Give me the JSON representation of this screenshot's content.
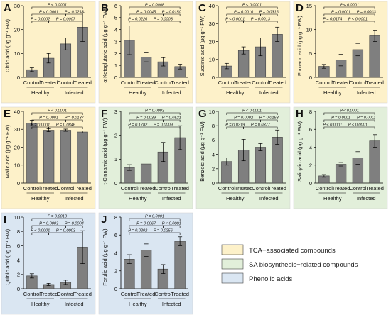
{
  "x_categories": [
    "Control",
    "Treated",
    "Control",
    "Treated"
  ],
  "group_labels": [
    "Healthy",
    "Infected"
  ],
  "legend": [
    {
      "label": "TCA−associated compounds",
      "color": "#fdf1c9"
    },
    {
      "label": "SA biosynthesis−related compounds",
      "color": "#e2efda"
    },
    {
      "label": "Phenolic acids",
      "color": "#dae6f2"
    }
  ],
  "colors": {
    "bar": "#7f7f7f",
    "tca_bg": "#fdf1c9",
    "sa_bg": "#e2efda",
    "phenolic_bg": "#dae6f2"
  },
  "chart_data": [
    {
      "panel": "A",
      "type": "bar",
      "ylabel": "Citric acid (μg g⁻¹ FW)",
      "ylim": [
        0,
        30
      ],
      "yticks": [
        0,
        10,
        20,
        30
      ],
      "categories": [
        "Control",
        "Treated",
        "Control",
        "Treated"
      ],
      "values": [
        3.2,
        8.0,
        14.0,
        21.0
      ],
      "errors": [
        0.8,
        2.0,
        2.5,
        6.0
      ],
      "background": "tca",
      "comparisons": [
        {
          "from": 0,
          "to": 3,
          "label": "P < 0.0001"
        },
        {
          "from": 0,
          "to": 2,
          "label": "P < 0.0001"
        },
        {
          "from": 2,
          "to": 3,
          "label": "P = 0.0218"
        },
        {
          "from": 0,
          "to": 1,
          "label": "P = 0.0002"
        },
        {
          "from": 1,
          "to": 3,
          "label": "P = 0.0007"
        }
      ]
    },
    {
      "panel": "B",
      "type": "bar",
      "ylabel": "α-Ketoglutaric acid (μg g⁻¹ FW)",
      "ylim": [
        0,
        6
      ],
      "yticks": [
        0,
        1,
        2,
        3,
        4,
        5,
        6
      ],
      "categories": [
        "Control",
        "Treated",
        "Control",
        "Treated"
      ],
      "values": [
        3.1,
        1.7,
        1.3,
        0.9
      ],
      "errors": [
        1.2,
        0.4,
        0.35,
        0.2
      ],
      "background": "tca",
      "comparisons": [
        {
          "from": 0,
          "to": 3,
          "label": "P = 0.0008"
        },
        {
          "from": 0,
          "to": 2,
          "label": "P = 0.0045"
        },
        {
          "from": 2,
          "to": 3,
          "label": "P = 0.0150"
        },
        {
          "from": 0,
          "to": 1,
          "label": "P = 0.0226"
        },
        {
          "from": 1,
          "to": 3,
          "label": "P = 0.0003"
        }
      ]
    },
    {
      "panel": "C",
      "type": "bar",
      "ylabel": "Succinic acid (μg g⁻¹ FW)",
      "ylim": [
        0,
        40
      ],
      "yticks": [
        0,
        10,
        20,
        30,
        40
      ],
      "categories": [
        "Control",
        "Treated",
        "Control",
        "Treated"
      ],
      "values": [
        6.3,
        15.0,
        17.0,
        24.0
      ],
      "errors": [
        1.5,
        2.0,
        5.0,
        4.0
      ],
      "background": "tca",
      "comparisons": [
        {
          "from": 0,
          "to": 3,
          "label": "P < 0.0001"
        },
        {
          "from": 0,
          "to": 2,
          "label": "P = 0.0010"
        },
        {
          "from": 2,
          "to": 3,
          "label": "P = 0.0316"
        },
        {
          "from": 0,
          "to": 1,
          "label": "P < 0.0001"
        },
        {
          "from": 1,
          "to": 3,
          "label": "P = 0.0013"
        }
      ]
    },
    {
      "panel": "D",
      "type": "bar",
      "ylabel": "Fumaric acid (μg g⁻¹ FW)",
      "ylim": [
        0,
        15
      ],
      "yticks": [
        0,
        5,
        10,
        15
      ],
      "categories": [
        "Control",
        "Treated",
        "Control",
        "Treated"
      ],
      "values": [
        2.3,
        3.6,
        5.8,
        8.7
      ],
      "errors": [
        0.4,
        1.2,
        1.3,
        1.2
      ],
      "background": "tca",
      "comparisons": [
        {
          "from": 0,
          "to": 3,
          "label": "P < 0.0001"
        },
        {
          "from": 0,
          "to": 2,
          "label": "P = 0.0001"
        },
        {
          "from": 2,
          "to": 3,
          "label": "P = 0.0033"
        },
        {
          "from": 0,
          "to": 1,
          "label": "P = 0.0174"
        },
        {
          "from": 1,
          "to": 3,
          "label": "P < 0.0001"
        }
      ]
    },
    {
      "panel": "E",
      "type": "bar",
      "ylabel": "Malic acid (μg g⁻¹ FW)",
      "ylim": [
        0,
        40
      ],
      "yticks": [
        0,
        10,
        20,
        30,
        40
      ],
      "categories": [
        "Control",
        "Treated",
        "Control",
        "Treated"
      ],
      "values": [
        33.5,
        29.5,
        29.5,
        28.5
      ],
      "errors": [
        1.5,
        0.8,
        0.6,
        0.6
      ],
      "background": "tca",
      "comparisons": [
        {
          "from": 0,
          "to": 3,
          "label": "P < 0.0001"
        },
        {
          "from": 0,
          "to": 2,
          "label": "P = 0.0001"
        },
        {
          "from": 2,
          "to": 3,
          "label": "P = 0.0137"
        },
        {
          "from": 0,
          "to": 1,
          "label": "P = 0.0001"
        },
        {
          "from": 1,
          "to": 3,
          "label": "P = 0.0846"
        }
      ]
    },
    {
      "panel": "F",
      "type": "bar",
      "ylabel": "t-Cinnamic acid (μg g⁻¹ FW)",
      "ylim": [
        0,
        3
      ],
      "yticks": [
        0,
        1,
        2,
        3
      ],
      "categories": [
        "Control",
        "Treated",
        "Control",
        "Treated"
      ],
      "values": [
        0.65,
        0.8,
        1.3,
        1.9
      ],
      "errors": [
        0.12,
        0.25,
        0.4,
        0.5
      ],
      "background": "sa",
      "comparisons": [
        {
          "from": 0,
          "to": 3,
          "label": "P = 0.0003"
        },
        {
          "from": 0,
          "to": 2,
          "label": "P = 0.0039"
        },
        {
          "from": 2,
          "to": 3,
          "label": "P = 0.0521"
        },
        {
          "from": 0,
          "to": 1,
          "label": "P = 0.1782"
        },
        {
          "from": 1,
          "to": 3,
          "label": "P = 0.0009"
        }
      ]
    },
    {
      "panel": "G",
      "type": "bar",
      "ylabel": "Benzoic acid (μg g⁻¹ FW)",
      "ylim": [
        0,
        10
      ],
      "yticks": [
        0,
        2,
        4,
        6,
        8,
        10
      ],
      "categories": [
        "Control",
        "Treated",
        "Control",
        "Treated"
      ],
      "values": [
        3.0,
        4.6,
        5.0,
        6.4
      ],
      "errors": [
        0.5,
        1.5,
        0.5,
        1.0
      ],
      "background": "sa",
      "comparisons": [
        {
          "from": 0,
          "to": 3,
          "label": "P < 0.0001"
        },
        {
          "from": 0,
          "to": 2,
          "label": "P = 0.0002"
        },
        {
          "from": 2,
          "to": 3,
          "label": "P = 0.0163"
        },
        {
          "from": 0,
          "to": 1,
          "label": "P = 0.0319"
        },
        {
          "from": 1,
          "to": 3,
          "label": "P = 0.0377"
        }
      ]
    },
    {
      "panel": "H",
      "type": "bar",
      "ylabel": "Salicylic acid (μg g⁻¹ FW)",
      "ylim": [
        0,
        8
      ],
      "yticks": [
        0,
        2,
        4,
        6,
        8
      ],
      "categories": [
        "Control",
        "Treated",
        "Control",
        "Treated"
      ],
      "values": [
        0.8,
        2.1,
        2.8,
        4.7
      ],
      "errors": [
        0.15,
        0.2,
        0.7,
        0.7
      ],
      "background": "sa",
      "comparisons": [
        {
          "from": 0,
          "to": 3,
          "label": "P < 0.0001"
        },
        {
          "from": 0,
          "to": 2,
          "label": "P = 0.0001"
        },
        {
          "from": 2,
          "to": 3,
          "label": "P = 0.0011"
        },
        {
          "from": 0,
          "to": 1,
          "label": "P < 0.0001"
        },
        {
          "from": 1,
          "to": 3,
          "label": "P < 0.0001"
        }
      ]
    },
    {
      "panel": "I",
      "type": "bar",
      "ylabel": "Quinic acid (μg g⁻¹ FW)",
      "ylim": [
        0,
        10
      ],
      "yticks": [
        0,
        2,
        4,
        6,
        8,
        10
      ],
      "categories": [
        "Control",
        "Treated",
        "Control",
        "Treated"
      ],
      "values": [
        1.8,
        0.6,
        0.9,
        5.8
      ],
      "errors": [
        0.3,
        0.15,
        0.3,
        2.3
      ],
      "background": "phenolic",
      "comparisons": [
        {
          "from": 0,
          "to": 3,
          "label": "P = 0.0018"
        },
        {
          "from": 0,
          "to": 2,
          "label": "P = 0.0003"
        },
        {
          "from": 2,
          "to": 3,
          "label": "P = 0.0004"
        },
        {
          "from": 0,
          "to": 1,
          "label": "P < 0.0001"
        },
        {
          "from": 1,
          "to": 3,
          "label": "P = 0.0003"
        }
      ]
    },
    {
      "panel": "J",
      "type": "bar",
      "ylabel": "Ferulic acid (μg g⁻¹ FW)",
      "ylim": [
        0,
        8
      ],
      "yticks": [
        0,
        2,
        4,
        6,
        8
      ],
      "categories": [
        "Control",
        "Treated",
        "Control",
        "Treated"
      ],
      "values": [
        3.3,
        4.3,
        2.2,
        5.3
      ],
      "errors": [
        0.5,
        0.7,
        0.5,
        0.5
      ],
      "background": "phenolic",
      "comparisons": [
        {
          "from": 0,
          "to": 3,
          "label": "P = 0.0001"
        },
        {
          "from": 0,
          "to": 2,
          "label": "P = 0.0067"
        },
        {
          "from": 2,
          "to": 3,
          "label": "P < 0.0001"
        },
        {
          "from": 0,
          "to": 1,
          "label": "P = 0.0202"
        },
        {
          "from": 1,
          "to": 3,
          "label": "P = 0.0256"
        }
      ]
    }
  ]
}
